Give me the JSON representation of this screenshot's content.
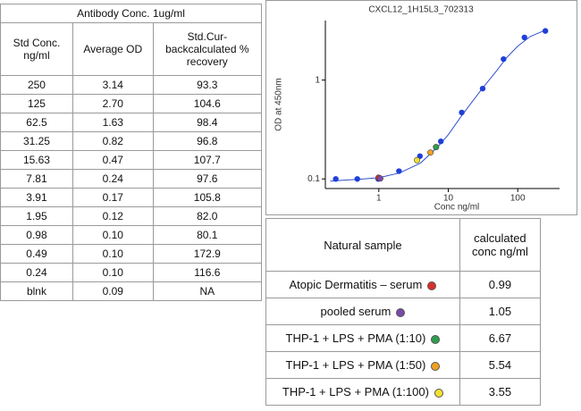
{
  "left_table": {
    "title": "Antibody Conc. 1ug/ml",
    "headers": [
      "Std Conc. ng/ml",
      "Average OD",
      "Std.Cur-backcalculated % recovery"
    ],
    "rows": [
      [
        "250",
        "3.14",
        "93.3"
      ],
      [
        "125",
        "2.70",
        "104.6"
      ],
      [
        "62.5",
        "1.63",
        "98.4"
      ],
      [
        "31.25",
        "0.82",
        "96.8"
      ],
      [
        "15.63",
        "0.47",
        "107.7"
      ],
      [
        "7.81",
        "0.24",
        "97.6"
      ],
      [
        "3.91",
        "0.17",
        "105.8"
      ],
      [
        "1.95",
        "0.12",
        "82.0"
      ],
      [
        "0.98",
        "0.10",
        "80.1"
      ],
      [
        "0.49",
        "0.10",
        "172.9"
      ],
      [
        "0.24",
        "0.10",
        "116.6"
      ],
      [
        "blnk",
        "0.09",
        "NA"
      ]
    ]
  },
  "chart_data": {
    "type": "scatter",
    "title": "CXCL12_1H15L3_702313",
    "x_label": "Conc ng/ml",
    "y_label": "OD at 450nm",
    "log_x": true,
    "log_y": true,
    "xlim": [
      0.17,
      400
    ],
    "ylim": [
      0.08,
      4
    ],
    "xticks": [
      1,
      10,
      100
    ],
    "yticks": [
      0.1,
      1
    ],
    "curve": {
      "color": "#3050d0",
      "x": [
        0.2,
        0.3,
        0.5,
        1,
        2,
        4,
        7,
        10,
        15,
        20,
        30,
        50,
        70,
        100,
        150,
        250
      ],
      "y": [
        0.095,
        0.097,
        0.099,
        0.103,
        0.115,
        0.145,
        0.21,
        0.28,
        0.42,
        0.55,
        0.8,
        1.25,
        1.7,
        2.2,
        2.75,
        3.2
      ]
    },
    "series": [
      {
        "color": "#1f3fd8",
        "x": [
          250,
          125,
          62.5,
          31.25,
          15.63,
          7.81,
          3.91,
          1.95,
          0.98,
          0.49,
          0.24
        ],
        "values": [
          3.14,
          2.7,
          1.63,
          0.82,
          0.47,
          0.24,
          0.17,
          0.12,
          0.1,
          0.1,
          0.1
        ]
      },
      {
        "colors": [
          "#d8302a",
          "#7a4aa8",
          "#2e9e4f",
          "#f0a020",
          "#f2e030"
        ],
        "x": [
          0.99,
          1.05,
          6.67,
          5.54,
          3.55
        ],
        "values": [
          0.103,
          0.101,
          0.21,
          0.185,
          0.155
        ]
      }
    ]
  },
  "sample_table": {
    "headers": [
      "Natural sample",
      "calculated conc ng/ml"
    ],
    "rows": [
      {
        "label": "Atopic Dermatitis – serum",
        "color": "#d8302a",
        "conc": "0.99"
      },
      {
        "label": "pooled serum",
        "color": "#7a4aa8",
        "conc": "1.05"
      },
      {
        "label": "THP-1 + LPS + PMA (1:10)",
        "color": "#2e9e4f",
        "conc": "6.67"
      },
      {
        "label": "THP-1 + LPS + PMA (1:50)",
        "color": "#f0a020",
        "conc": "5.54"
      },
      {
        "label": "THP-1 + LPS + PMA (1:100)",
        "color": "#f2e030",
        "conc": "3.55"
      }
    ]
  }
}
